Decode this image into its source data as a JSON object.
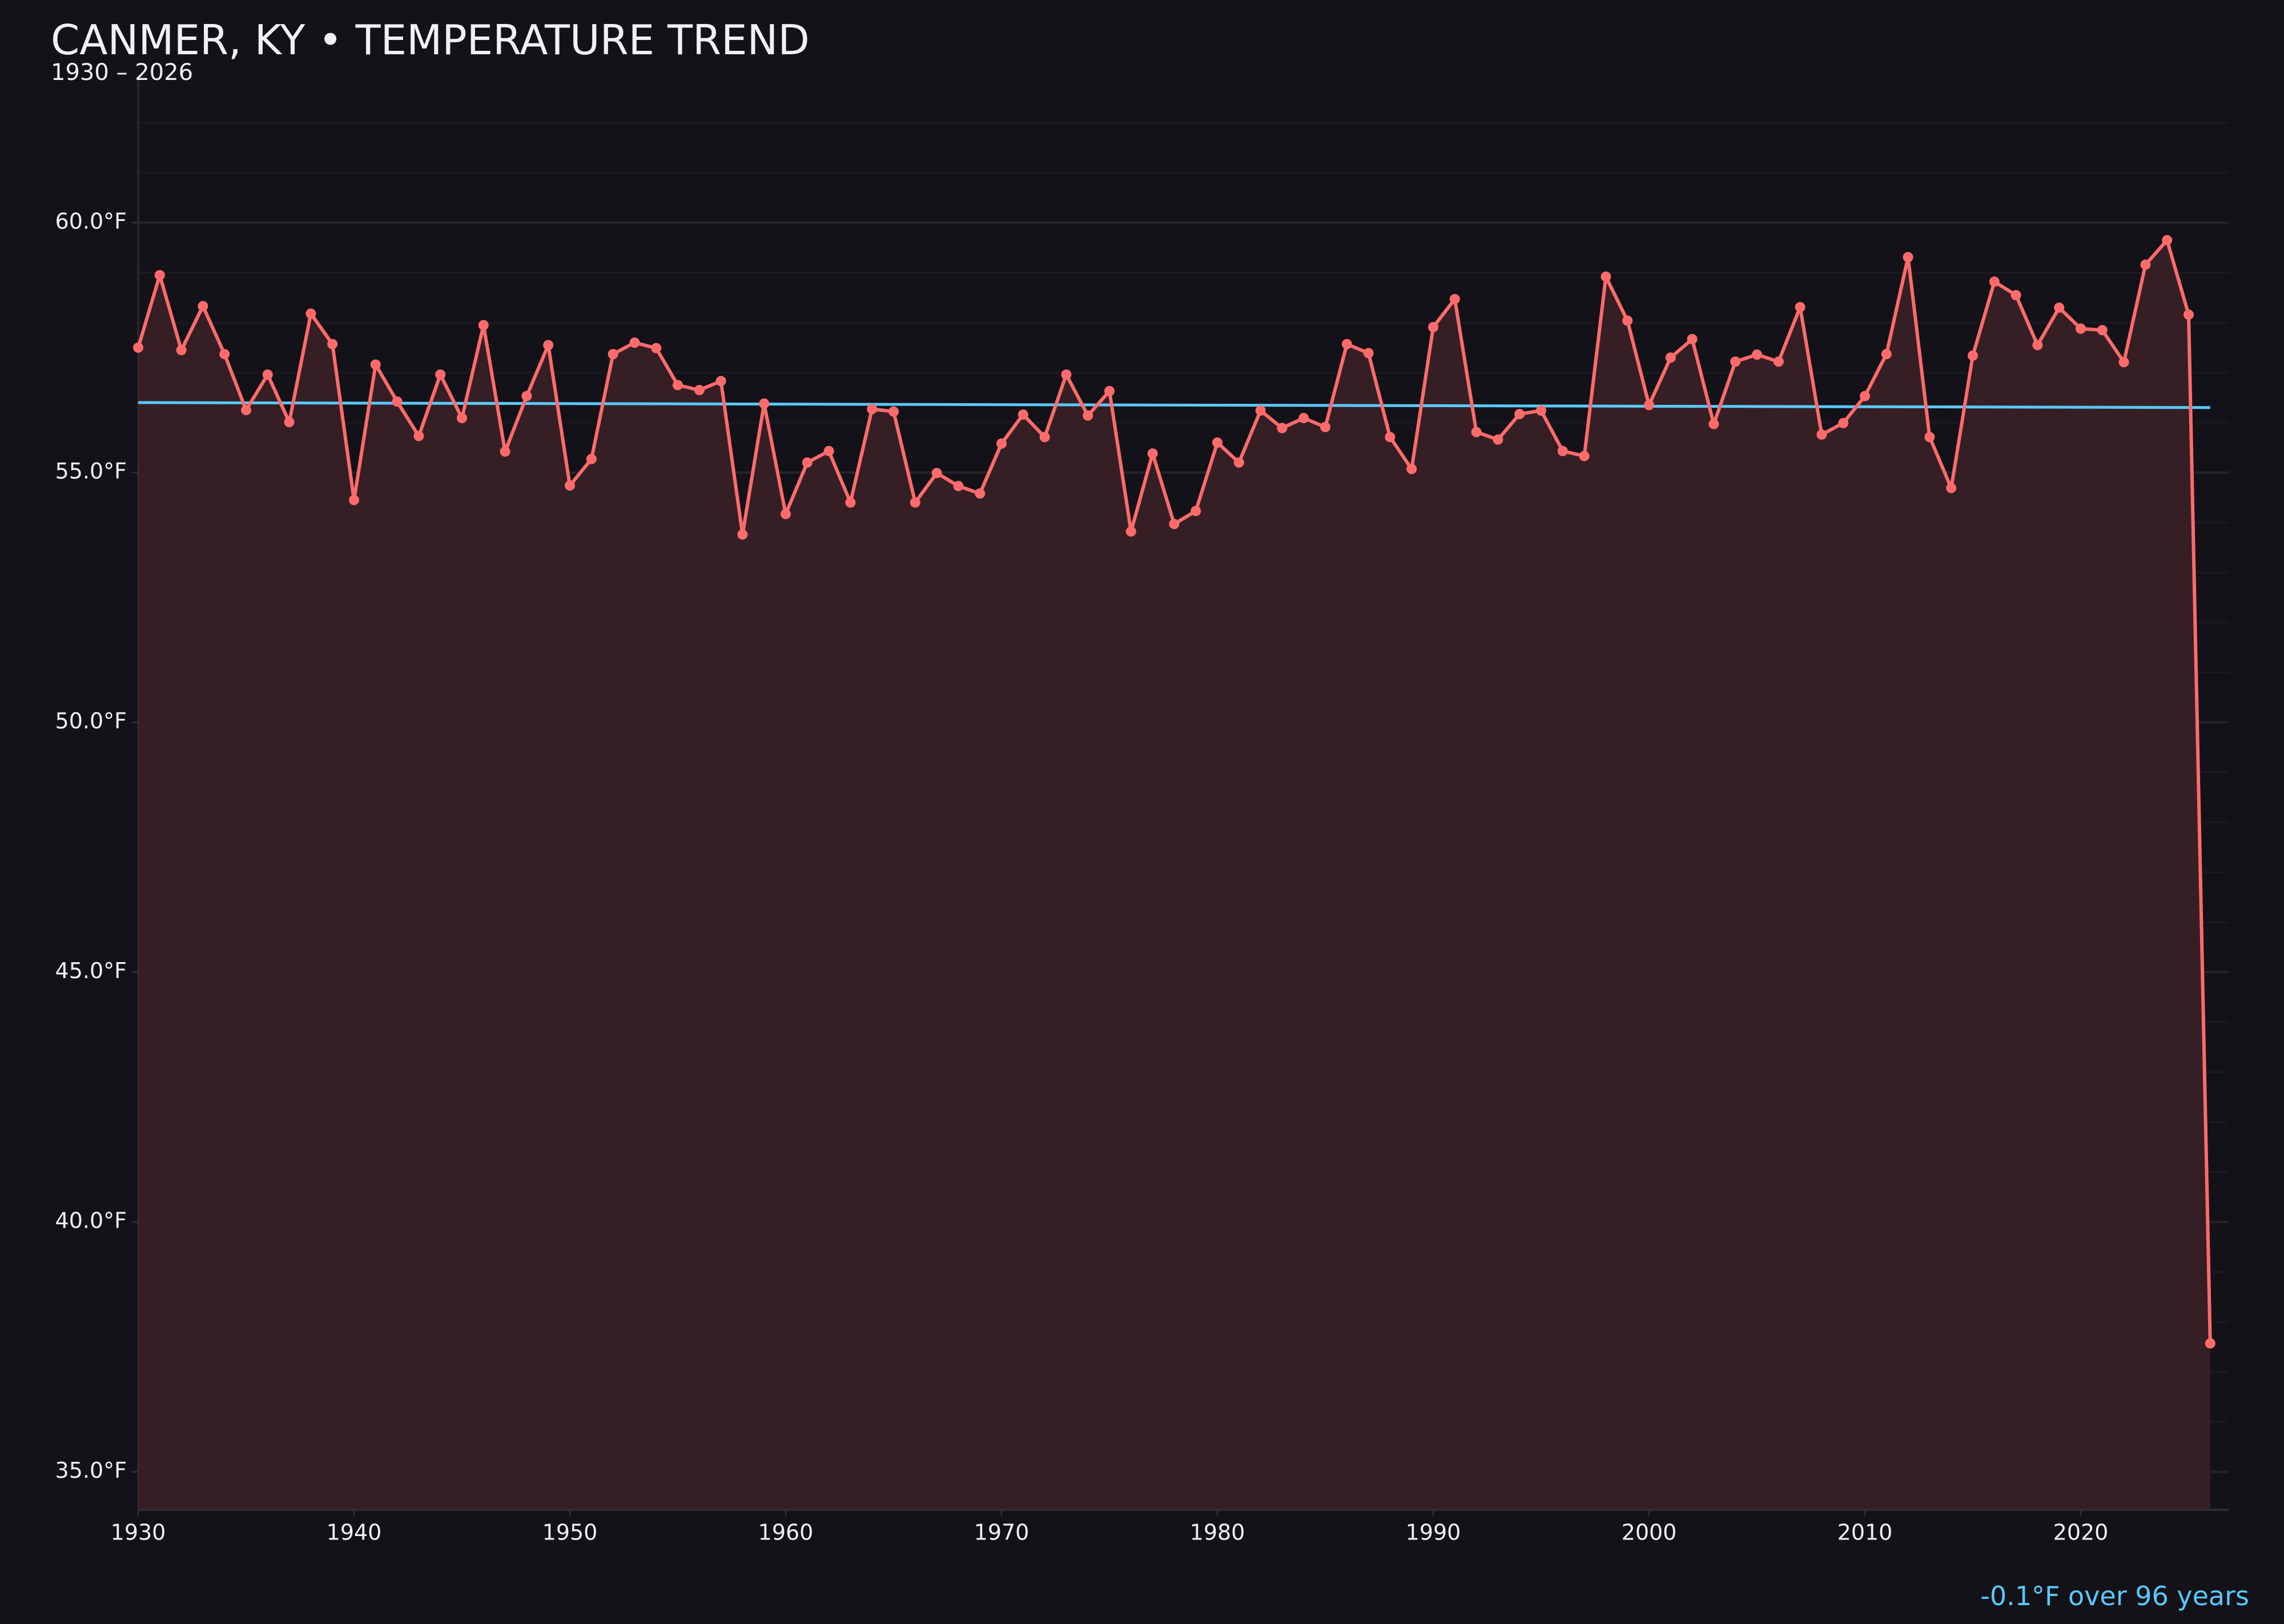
{
  "chart_data": {
    "type": "line",
    "title": "CANMER, KY • TEMPERATURE TREND",
    "subtitle": "1930 – 2026",
    "xlabel": "",
    "ylabel": "",
    "xlim": [
      1930,
      2027
    ],
    "ylim": [
      34.2,
      62.9
    ],
    "grid": true,
    "y_ticks": [
      60,
      55,
      50,
      45,
      40,
      35
    ],
    "y_tick_labels": [
      "60.0°F",
      "55.0°F",
      "50.0°F",
      "45.0°F",
      "40.0°F",
      "35.0°F"
    ],
    "x_ticks": [
      1930,
      1940,
      1950,
      1960,
      1970,
      1980,
      1990,
      2000,
      2010,
      2020
    ],
    "x_tick_labels": [
      "1930",
      "1940",
      "1950",
      "1960",
      "1970",
      "1980",
      "1990",
      "2000",
      "2010",
      "2020"
    ],
    "series": [
      {
        "type": "area-line",
        "color": "#ff6b6b",
        "fill_color": "#351f25",
        "x_start": 1930,
        "values": [
          57.5,
          58.95,
          57.45,
          58.33,
          57.37,
          56.25,
          56.96,
          56.01,
          58.18,
          57.57,
          54.45,
          57.16,
          56.42,
          55.73,
          56.96,
          56.09,
          57.95,
          55.42,
          56.53,
          57.55,
          54.74,
          55.27,
          57.37,
          57.6,
          57.49,
          56.75,
          56.65,
          56.83,
          53.76,
          56.38,
          54.17,
          55.2,
          55.43,
          54.4,
          56.27,
          56.22,
          54.4,
          54.99,
          54.73,
          54.58,
          55.58,
          56.16,
          55.71,
          56.96,
          56.14,
          56.63,
          53.82,
          55.38,
          53.97,
          54.23,
          55.6,
          55.2,
          56.24,
          55.89,
          56.09,
          55.91,
          57.57,
          57.39,
          55.71,
          55.07,
          57.91,
          58.47,
          55.81,
          55.66,
          56.17,
          56.24,
          55.43,
          55.33,
          58.92,
          58.04,
          56.35,
          57.3,
          57.67,
          55.97,
          57.22,
          57.36,
          57.22,
          58.31,
          55.76,
          55.99,
          56.53,
          57.37,
          59.31,
          55.71,
          54.69,
          57.34,
          58.82,
          58.55,
          57.55,
          58.3,
          57.88,
          57.85,
          57.21,
          59.16,
          59.65,
          58.16,
          37.57
        ]
      },
      {
        "type": "trend",
        "color": "#5ac8fa",
        "x": [
          1930,
          2026
        ],
        "values": [
          56.4,
          56.3
        ]
      }
    ],
    "annotation": "-0.1°F over 96 years"
  }
}
